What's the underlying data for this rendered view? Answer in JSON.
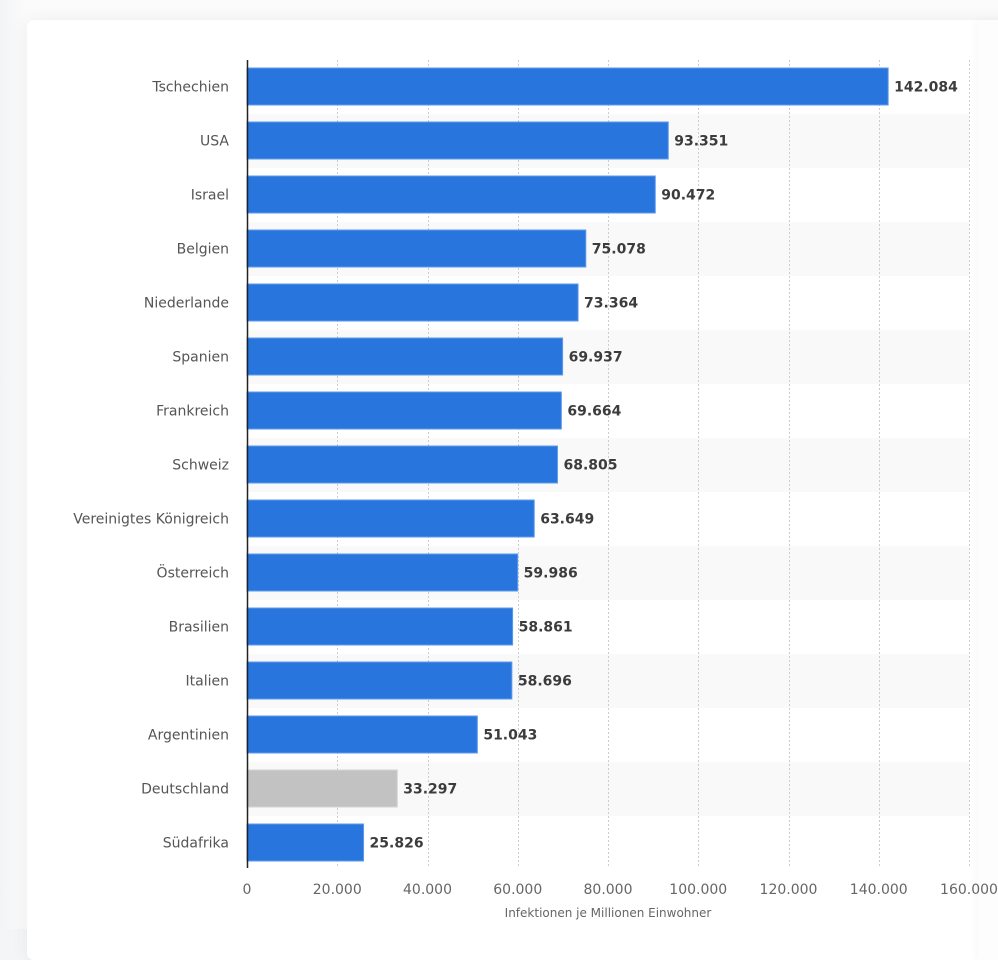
{
  "chart_data": {
    "type": "bar",
    "orientation": "horizontal",
    "title": "",
    "xlabel": "Infektionen je Millionen Einwohner",
    "ylabel": "",
    "xlim": [
      0,
      160000
    ],
    "grid": true,
    "categories": [
      "Tschechien",
      "USA",
      "Israel",
      "Belgien",
      "Niederlande",
      "Spanien",
      "Frankreich",
      "Schweiz",
      "Vereinigtes Königreich",
      "Österreich",
      "Brasilien",
      "Italien",
      "Argentinien",
      "Deutschland",
      "Südafrika"
    ],
    "values": [
      142084,
      93351,
      90472,
      75078,
      73364,
      69937,
      69664,
      68805,
      63649,
      59986,
      58861,
      58696,
      51043,
      33297,
      25826
    ],
    "value_labels": [
      "142.084",
      "93.351",
      "90.472",
      "75.078",
      "73.364",
      "69.937",
      "69.664",
      "68.805",
      "63.649",
      "59.986",
      "58.861",
      "58.696",
      "51.043",
      "33.297",
      "25.826"
    ],
    "highlight_category": "Deutschland",
    "x_ticks": [
      0,
      20000,
      40000,
      60000,
      80000,
      100000,
      120000,
      140000,
      160000
    ],
    "x_tick_labels": [
      "0",
      "20.000",
      "40.000",
      "60.000",
      "80.000",
      "100.000",
      "120.000",
      "140.000",
      "160.000"
    ],
    "colors": {
      "bar": "#2876dd",
      "bar_edge": "#5d9aea",
      "highlight_bar": "#c2c2c2",
      "highlight_edge": "#d4d4d4",
      "band_alt": "#f9f9f9",
      "grid": "#cccccc",
      "axis": "#222222"
    }
  }
}
